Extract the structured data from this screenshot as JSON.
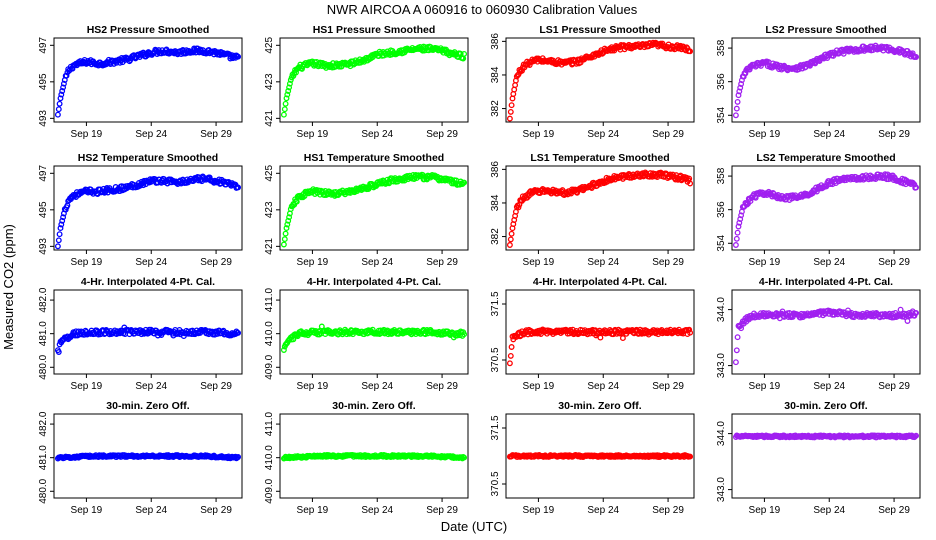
{
  "figure": {
    "title": "NWR   AIRCOA A   060916 to 060930   Calibration Values",
    "xlabel": "Date (UTC)",
    "ylabel": "Measured CO2 (ppm)"
  },
  "chart_data": [
    {
      "type": "scatter",
      "title": "HS2 Pressure Smoothed",
      "color": "#0000ff",
      "xticks": [
        "Sep 19",
        "Sep 24",
        "Sep 29"
      ],
      "yticks": [
        493,
        495,
        497
      ],
      "ylim": [
        492.8,
        497.4
      ],
      "series_profile": {
        "x": [
          16.8,
          17.0,
          17.3,
          17.6,
          18.0,
          18.5,
          19.0,
          20.0,
          21.0,
          22.0,
          23.0,
          24.0,
          25.0,
          26.0,
          27.0,
          28.0,
          29.0,
          30.0,
          30.7
        ],
        "y": [
          493.2,
          494.1,
          495.0,
          495.6,
          495.9,
          496.0,
          496.1,
          496.0,
          496.1,
          496.2,
          496.4,
          496.6,
          496.7,
          496.6,
          496.7,
          496.7,
          496.6,
          496.4,
          496.3
        ]
      }
    },
    {
      "type": "scatter",
      "title": "HS1 Pressure Smoothed",
      "color": "#00ff00",
      "xticks": [
        "Sep 19",
        "Sep 24",
        "Sep 29"
      ],
      "yticks": [
        421,
        423,
        425
      ],
      "ylim": [
        420.8,
        425.4
      ],
      "series_profile": {
        "x": [
          16.8,
          17.0,
          17.3,
          17.6,
          18.0,
          18.5,
          19.0,
          20.0,
          21.0,
          22.0,
          23.0,
          24.0,
          25.0,
          26.0,
          27.0,
          28.0,
          29.0,
          30.0,
          30.7
        ],
        "y": [
          421.2,
          422.1,
          423.0,
          423.5,
          423.8,
          423.9,
          424.0,
          423.9,
          423.9,
          424.0,
          424.2,
          424.5,
          424.6,
          424.7,
          424.8,
          424.8,
          424.7,
          424.5,
          424.4
        ]
      }
    },
    {
      "type": "scatter",
      "title": "LS1 Pressure Smoothed",
      "color": "#ff0000",
      "xticks": [
        "Sep 19",
        "Sep 24",
        "Sep 29"
      ],
      "yticks": [
        382,
        384,
        386
      ],
      "ylim": [
        381.2,
        386.2
      ],
      "series_profile": {
        "x": [
          16.8,
          17.0,
          17.3,
          17.6,
          18.0,
          18.5,
          19.0,
          20.0,
          21.0,
          22.0,
          23.0,
          24.0,
          25.0,
          26.0,
          27.0,
          28.0,
          29.0,
          30.0,
          30.7
        ],
        "y": [
          381.4,
          382.6,
          383.8,
          384.3,
          384.6,
          384.8,
          384.9,
          384.8,
          384.7,
          384.8,
          385.1,
          385.4,
          385.6,
          385.7,
          385.7,
          385.8,
          385.7,
          385.6,
          385.5
        ]
      }
    },
    {
      "type": "scatter",
      "title": "LS2 Pressure Smoothed",
      "color": "#a020f0",
      "xticks": [
        "Sep 19",
        "Sep 24",
        "Sep 29"
      ],
      "yticks": [
        354,
        356,
        358
      ],
      "ylim": [
        353.6,
        358.6
      ],
      "series_profile": {
        "x": [
          16.8,
          17.0,
          17.3,
          17.6,
          18.0,
          18.5,
          19.0,
          20.0,
          21.0,
          22.0,
          23.0,
          24.0,
          25.0,
          26.0,
          27.0,
          28.0,
          29.0,
          30.0,
          30.7
        ],
        "y": [
          354.0,
          355.2,
          356.2,
          356.6,
          356.9,
          357.0,
          357.1,
          356.9,
          356.8,
          356.9,
          357.2,
          357.6,
          357.8,
          357.9,
          358.0,
          358.0,
          357.9,
          357.7,
          357.5
        ]
      }
    },
    {
      "type": "scatter",
      "title": "HS2 Temperature Smoothed",
      "color": "#0000ff",
      "xticks": [
        "Sep 19",
        "Sep 24",
        "Sep 29"
      ],
      "yticks": [
        493,
        495,
        497
      ],
      "ylim": [
        492.8,
        497.4
      ],
      "series_profile": {
        "x": [
          16.8,
          17.0,
          17.3,
          17.6,
          18.0,
          18.5,
          19.0,
          20.0,
          21.0,
          22.0,
          23.0,
          24.0,
          25.0,
          26.0,
          27.0,
          28.0,
          29.0,
          30.0,
          30.7
        ],
        "y": [
          493.0,
          494.0,
          494.9,
          495.5,
          495.8,
          495.9,
          496.0,
          496.0,
          496.1,
          496.2,
          496.4,
          496.6,
          496.6,
          496.5,
          496.6,
          496.7,
          496.6,
          496.4,
          496.2
        ]
      }
    },
    {
      "type": "scatter",
      "title": "HS1 Temperature Smoothed",
      "color": "#00ff00",
      "xticks": [
        "Sep 19",
        "Sep 24",
        "Sep 29"
      ],
      "yticks": [
        421,
        423,
        425
      ],
      "ylim": [
        420.8,
        425.4
      ],
      "series_profile": {
        "x": [
          16.8,
          17.0,
          17.3,
          17.6,
          18.0,
          18.5,
          19.0,
          20.0,
          21.0,
          22.0,
          23.0,
          24.0,
          25.0,
          26.0,
          27.0,
          28.0,
          29.0,
          30.0,
          30.7
        ],
        "y": [
          421.1,
          422.0,
          422.9,
          423.4,
          423.7,
          423.9,
          424.0,
          423.9,
          423.9,
          424.0,
          424.2,
          424.4,
          424.6,
          424.7,
          424.8,
          424.8,
          424.7,
          424.5,
          424.4
        ]
      }
    },
    {
      "type": "scatter",
      "title": "LS1 Temperature Smoothed",
      "color": "#ff0000",
      "xticks": [
        "Sep 19",
        "Sep 24",
        "Sep 29"
      ],
      "yticks": [
        382,
        384,
        386
      ],
      "ylim": [
        381.2,
        386.2
      ],
      "series_profile": {
        "x": [
          16.8,
          17.0,
          17.3,
          17.6,
          18.0,
          18.5,
          19.0,
          20.0,
          21.0,
          22.0,
          23.0,
          24.0,
          25.0,
          26.0,
          27.0,
          28.0,
          29.0,
          30.0,
          30.7
        ],
        "y": [
          381.5,
          382.5,
          383.6,
          384.1,
          384.4,
          384.6,
          384.7,
          384.7,
          384.6,
          384.7,
          385.0,
          385.3,
          385.5,
          385.6,
          385.7,
          385.7,
          385.6,
          385.5,
          385.3
        ]
      }
    },
    {
      "type": "scatter",
      "title": "LS2 Temperature Smoothed",
      "color": "#a020f0",
      "xticks": [
        "Sep 19",
        "Sep 24",
        "Sep 29"
      ],
      "yticks": [
        354,
        356,
        358
      ],
      "ylim": [
        353.6,
        358.6
      ],
      "series_profile": {
        "x": [
          16.8,
          17.0,
          17.3,
          17.6,
          18.0,
          18.5,
          19.0,
          20.0,
          21.0,
          22.0,
          23.0,
          24.0,
          25.0,
          26.0,
          27.0,
          28.0,
          29.0,
          30.0,
          30.7
        ],
        "y": [
          353.9,
          355.0,
          356.0,
          356.4,
          356.7,
          356.9,
          357.0,
          356.8,
          356.7,
          356.8,
          357.2,
          357.6,
          357.8,
          357.9,
          357.9,
          358.0,
          357.9,
          357.6,
          357.4
        ]
      }
    },
    {
      "type": "scatter",
      "title": "4-Hr. Interpolated 4-Pt. Cal.",
      "color": "#0000ff",
      "xticks": [
        "Sep 19",
        "Sep 24",
        "Sep 29"
      ],
      "yticks": [
        480.0,
        481.0,
        482.0
      ],
      "ylim": [
        479.8,
        482.3
      ],
      "series_profile": {
        "x": [
          16.8,
          17.0,
          18.0,
          20.0,
          22.0,
          24.0,
          26.0,
          28.0,
          30.7
        ],
        "y": [
          480.45,
          480.75,
          481.0,
          481.05,
          481.05,
          481.05,
          481.05,
          481.05,
          481.0
        ]
      }
    },
    {
      "type": "scatter",
      "title": "4-Hr. Interpolated 4-Pt. Cal.",
      "color": "#00ff00",
      "xticks": [
        "Sep 19",
        "Sep 24",
        "Sep 29"
      ],
      "yticks": [
        409.0,
        410.0,
        411.0
      ],
      "ylim": [
        408.8,
        411.3
      ],
      "series_profile": {
        "x": [
          16.8,
          17.0,
          18.0,
          20.0,
          22.0,
          24.0,
          26.0,
          28.0,
          30.7
        ],
        "y": [
          409.45,
          409.75,
          410.0,
          410.05,
          410.05,
          410.05,
          410.05,
          410.05,
          410.0
        ]
      }
    },
    {
      "type": "scatter",
      "title": "4-Hr. Interpolated 4-Pt. Cal.",
      "color": "#ff0000",
      "xticks": [
        "Sep 19",
        "Sep 24",
        "Sep 29"
      ],
      "yticks": [
        370.5,
        371.5
      ],
      "ylim": [
        370.25,
        371.75
      ],
      "series_profile": {
        "x": [
          16.8,
          17.0,
          18.0,
          20.0,
          22.0,
          24.0,
          26.0,
          28.0,
          30.7
        ],
        "y": [
          370.4,
          370.9,
          371.0,
          371.0,
          371.0,
          371.0,
          371.0,
          371.0,
          371.0
        ]
      }
    },
    {
      "type": "scatter",
      "title": "4-Hr. Interpolated 4-Pt. Cal.",
      "color": "#a020f0",
      "xticks": [
        "Sep 19",
        "Sep 24",
        "Sep 29"
      ],
      "yticks": [
        343.0,
        344.0
      ],
      "ylim": [
        342.85,
        344.35
      ],
      "series_profile": {
        "x": [
          16.8,
          17.0,
          18.0,
          20.0,
          22.0,
          24.0,
          26.0,
          28.0,
          30.7
        ],
        "y": [
          343.1,
          343.7,
          343.9,
          343.9,
          343.9,
          343.95,
          343.9,
          343.9,
          343.9
        ]
      }
    },
    {
      "type": "scatter",
      "title": "30-min. Zero Off.",
      "color": "#0000ff",
      "xticks": [
        "Sep 19",
        "Sep 24",
        "Sep 29"
      ],
      "yticks": [
        480.0,
        481.0,
        482.0
      ],
      "ylim": [
        479.8,
        482.3
      ],
      "series_profile": {
        "x": [
          16.8,
          20.0,
          24.0,
          28.0,
          30.7
        ],
        "y": [
          481.0,
          481.05,
          481.05,
          481.05,
          481.0
        ]
      }
    },
    {
      "type": "scatter",
      "title": "30-min. Zero Off.",
      "color": "#00ff00",
      "xticks": [
        "Sep 19",
        "Sep 24",
        "Sep 29"
      ],
      "yticks": [
        409.0,
        410.0,
        411.0
      ],
      "ylim": [
        408.8,
        411.3
      ],
      "series_profile": {
        "x": [
          16.8,
          20.0,
          24.0,
          28.0,
          30.7
        ],
        "y": [
          410.0,
          410.05,
          410.05,
          410.05,
          410.0
        ]
      }
    },
    {
      "type": "scatter",
      "title": "30-min. Zero Off.",
      "color": "#ff0000",
      "xticks": [
        "Sep 19",
        "Sep 24",
        "Sep 29"
      ],
      "yticks": [
        370.5,
        371.5
      ],
      "ylim": [
        370.25,
        371.75
      ],
      "series_profile": {
        "x": [
          16.8,
          20.0,
          24.0,
          28.0,
          30.7
        ],
        "y": [
          371.0,
          371.0,
          371.0,
          371.0,
          371.0
        ]
      }
    },
    {
      "type": "scatter",
      "title": "30-min. Zero Off.",
      "color": "#a020f0",
      "xticks": [
        "Sep 19",
        "Sep 24",
        "Sep 29"
      ],
      "yticks": [
        343.0,
        344.0
      ],
      "ylim": [
        342.85,
        344.35
      ],
      "series_profile": {
        "x": [
          16.8,
          20.0,
          24.0,
          28.0,
          30.7
        ],
        "y": [
          343.95,
          343.95,
          343.95,
          343.95,
          343.95
        ]
      }
    }
  ]
}
